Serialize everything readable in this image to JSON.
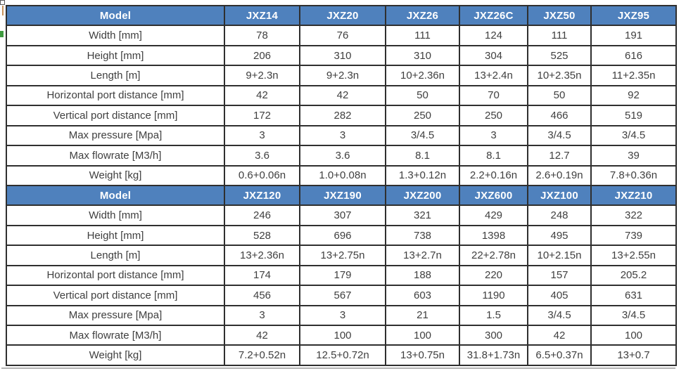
{
  "table": {
    "header_bg": "#4f81bd",
    "header_text_color": "#ffffff",
    "body_text_color": "#3f3f3f",
    "border_color": "#2f2f2f",
    "model_label": "Model",
    "row_labels": [
      "Width [mm]",
      "Height [mm]",
      "Length [m]",
      "Horizontal port distance [mm]",
      "Vertical port distance  [mm]",
      "Max pressure [Mpa]",
      "Max flowrate  [M3/h]",
      "Weight [kg]"
    ],
    "sections": [
      {
        "models": [
          "JXZ14",
          "JXZ20",
          "JXZ26",
          "JXZ26C",
          "JXZ50",
          "JXZ95"
        ],
        "rows": [
          [
            "78",
            "76",
            "111",
            "124",
            "111",
            "191"
          ],
          [
            "206",
            "310",
            "310",
            "304",
            "525",
            "616"
          ],
          [
            "9+2.3n",
            "9+2.3n",
            "10+2.36n",
            "13+2.4n",
            "10+2.35n",
            "11+2.35n"
          ],
          [
            "42",
            "42",
            "50",
            "70",
            "50",
            "92"
          ],
          [
            "172",
            "282",
            "250",
            "250",
            "466",
            "519"
          ],
          [
            "3",
            "3",
            "3/4.5",
            "3",
            "3/4.5",
            "3/4.5"
          ],
          [
            "3.6",
            "3.6",
            "8.1",
            "8.1",
            "12.7",
            "39"
          ],
          [
            "0.6+0.06n",
            "1.0+0.08n",
            "1.3+0.12n",
            "2.2+0.16n",
            "2.6+0.19n",
            "7.8+0.36n"
          ]
        ]
      },
      {
        "models": [
          "JXZ120",
          "JXZ190",
          "JXZ200",
          "JXZ600",
          "JXZ100",
          "JXZ210"
        ],
        "rows": [
          [
            "246",
            "307",
            "321",
            "429",
            "248",
            "322"
          ],
          [
            "528",
            "696",
            "738",
            "1398",
            "495",
            "739"
          ],
          [
            "13+2.36n",
            "13+2.75n",
            "13+2.7n",
            "22+2.78n",
            "10+2.15n",
            "13+2.55n"
          ],
          [
            "174",
            "179",
            "188",
            "220",
            "157",
            "205.2"
          ],
          [
            "456",
            "567",
            "603",
            "1190",
            "405",
            "631"
          ],
          [
            "3",
            "3",
            "21",
            "1.5",
            "3/4.5",
            "3/4.5"
          ],
          [
            "42",
            "100",
            "100",
            "300",
            "42",
            "100"
          ],
          [
            "7.2+0.52n",
            "12.5+0.72n",
            "13+0.75n",
            "31.8+1.73n",
            "6.5+0.37n",
            "13+0.7"
          ]
        ]
      }
    ]
  }
}
